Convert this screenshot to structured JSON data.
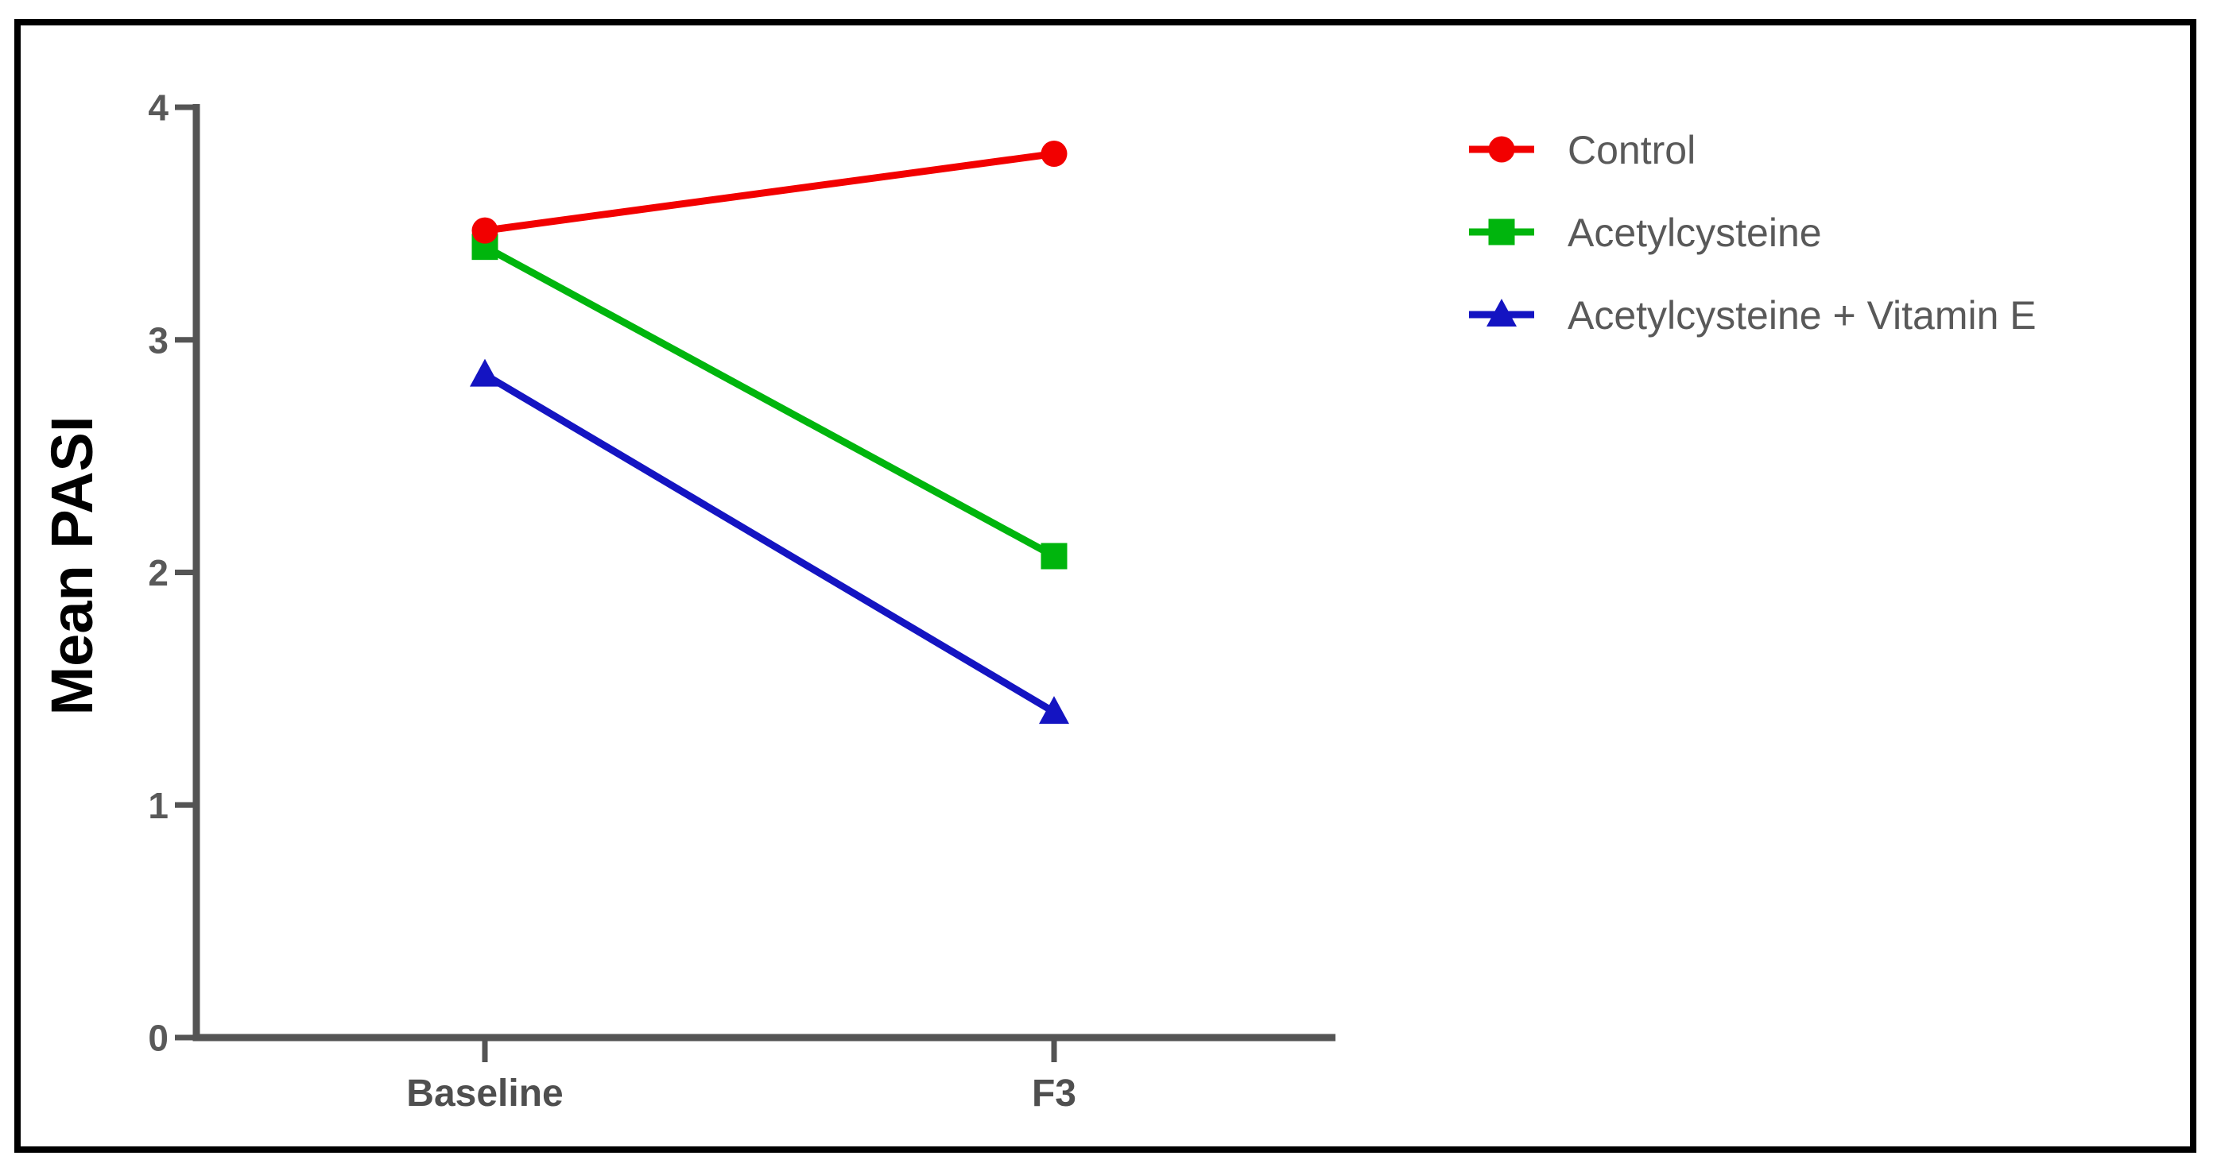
{
  "figure": {
    "background_color": "#ffffff",
    "border_color": "#000000"
  },
  "chart_data": {
    "type": "line",
    "title": "",
    "xlabel": "",
    "ylabel": "Mean PASI",
    "categories": [
      "Baseline",
      "F3"
    ],
    "series": [
      {
        "name": "Control",
        "color": "#f20000",
        "marker": "circle",
        "values": [
          3.47,
          3.8
        ]
      },
      {
        "name": "Acetylcysteine",
        "color": "#00b50d",
        "marker": "square",
        "values": [
          3.4,
          2.07
        ]
      },
      {
        "name": "Acetylcysteine + Vitamin E",
        "color": "#1414c2",
        "marker": "triangle",
        "values": [
          2.85,
          1.4
        ]
      }
    ],
    "ylim": [
      0,
      4
    ],
    "yticks": [
      0,
      1,
      2,
      3,
      4
    ],
    "grid": false,
    "legend_position": "right",
    "colors": {
      "axis": "#545454",
      "ytick_labels": "#595959",
      "xtick_labels": "#4f4f4f",
      "ylabel": "#000000",
      "legend_text": "#595959"
    }
  }
}
